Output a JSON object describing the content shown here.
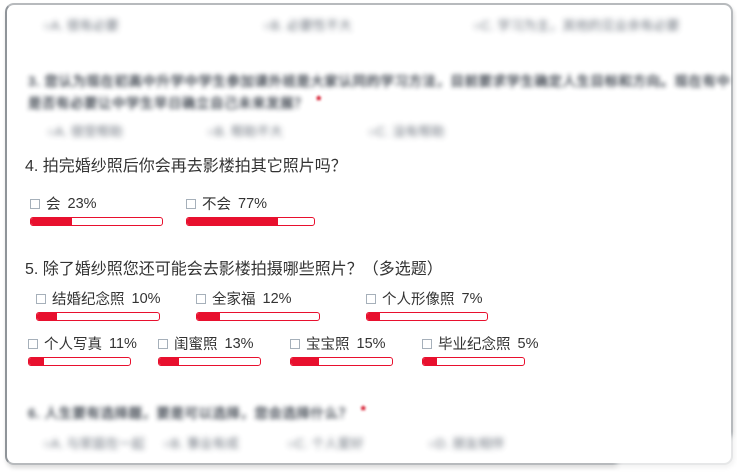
{
  "colors": {
    "accent_red": "#e8102e",
    "text_dark": "#333333",
    "blurred_text": "#3c434d",
    "blurred_option_text": "#5d6570",
    "card_border": "#b7babd",
    "required_mark_red": "#d30b20"
  },
  "required_mark": "*",
  "top_blurred_options": {
    "note": "blurred illegible radio options of previous question",
    "items": [
      {
        "text": "○A. 很有必要"
      },
      {
        "text": "○B. 必要性不大"
      },
      {
        "text": "○C. 学习为主，其他的见业余有必要"
      }
    ]
  },
  "q3_blurred": {
    "note": "blurred illegible question text",
    "line1": "3. 您认为现在初高中升学中学生参加课外班是大家认同的学习方法，目前要求学生确定人生目标和方向。现在有中学要求",
    "line2": "是否有必要让中学生早日确立自己未来发展？",
    "options": [
      {
        "text": "○A. 很受帮助"
      },
      {
        "text": "○B. 帮助不大"
      },
      {
        "text": "○C. 没有帮助"
      }
    ]
  },
  "q4": {
    "title": "4. 拍完婚纱照后你会再去影楼拍其它照片吗？",
    "options": [
      {
        "label": "会",
        "pct": "23%",
        "fill": 31
      },
      {
        "label": "不会",
        "pct": "77%",
        "fill": 72
      }
    ]
  },
  "q5": {
    "title": "5. 除了婚纱照您还可能会去影楼拍摄哪些照片？（多选题）",
    "row1": [
      {
        "label": "结婚纪念照",
        "pct": "10%",
        "fill": 16
      },
      {
        "label": "全家福",
        "pct": "12%",
        "fill": 19
      },
      {
        "label": "个人形像照",
        "pct": "7%",
        "fill": 11
      }
    ],
    "row2": [
      {
        "label": "个人写真",
        "pct": "11%",
        "fill": 15
      },
      {
        "label": "闺蜜照",
        "pct": "13%",
        "fill": 20
      },
      {
        "label": "宝宝照",
        "pct": "15%",
        "fill": 28
      },
      {
        "label": "毕业纪念照",
        "pct": "5%",
        "fill": 14
      }
    ]
  },
  "q6_blurred": {
    "note": "blurred illegible question text",
    "line": "6. 人生要有选择题，要是可以选择，您会选择什么？",
    "options": [
      {
        "text": "○A. 与家庭在一起"
      },
      {
        "text": "○B. 事业有成"
      },
      {
        "text": "○C. 个人爱好"
      },
      {
        "text": "○D. 朋友相伴"
      }
    ]
  },
  "chart_data": [
    {
      "type": "bar",
      "title": "4. 拍完婚纱照后你会再去影楼拍其它照片吗？",
      "categories": [
        "会",
        "不会"
      ],
      "values": [
        23,
        77
      ],
      "unit": "%"
    },
    {
      "type": "bar",
      "title": "5. 除了婚纱照您还可能会去影楼拍摄哪些照片？（多选题）",
      "categories": [
        "结婚纪念照",
        "全家福",
        "个人形像照",
        "个人写真",
        "闺蜜照",
        "宝宝照",
        "毕业纪念照"
      ],
      "values": [
        10,
        12,
        7,
        11,
        13,
        15,
        5
      ],
      "unit": "%"
    }
  ]
}
